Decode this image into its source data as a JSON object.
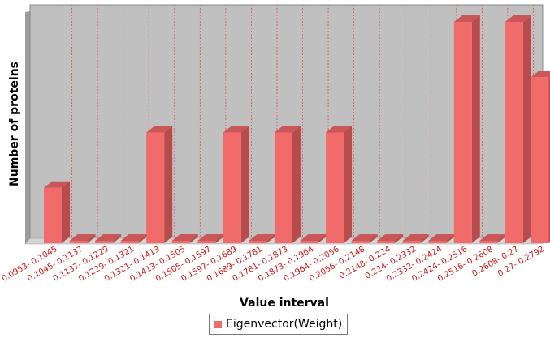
{
  "chart_data": {
    "type": "bar",
    "style": "3d",
    "xlabel": "Value interval",
    "ylabel": "Number of proteins",
    "y_tick_labels_shown": false,
    "grid": "vertical dashed red lines between categories",
    "legend_position": "bottom",
    "categories": [
      "0.0953- 0.1045",
      "0.1045- 0.1137",
      "0.1137- 0.1229",
      "0.1229- 0.1321",
      "0.1321- 0.1413",
      "0.1413- 0.1505",
      "0.1505- 0.1597",
      "0.1597- 0.1689",
      "0.1689- 0.1781",
      "0.1781- 0.1873",
      "0.1873- 0.1964",
      "0.1964- 0.2056",
      "0.2056- 0.2148",
      "0.2148- 0.224",
      "0.224- 0.2332",
      "0.2332- 0.2424",
      "0.2424- 0.2516",
      "0.2516- 0.2608",
      "0.2608- 0.27",
      "0.27- 0.2792"
    ],
    "series": [
      {
        "name": "Eigenvector(Weight)",
        "color": "#f26b6b",
        "values": [
          1,
          0,
          0,
          0,
          2,
          0,
          0,
          2,
          0,
          2,
          0,
          2,
          0,
          0,
          0,
          0,
          4,
          0,
          4,
          3
        ]
      }
    ],
    "ylim": [
      0,
      4
    ],
    "colors": {
      "bar": "#f26b6b",
      "bar_side": "#b84c4c",
      "bar_top": "#c95757",
      "plot_bg": "#c0c0c0",
      "wall": "#d4d4d4",
      "grid": "#e05050",
      "tick_text": "#dd1111"
    }
  }
}
